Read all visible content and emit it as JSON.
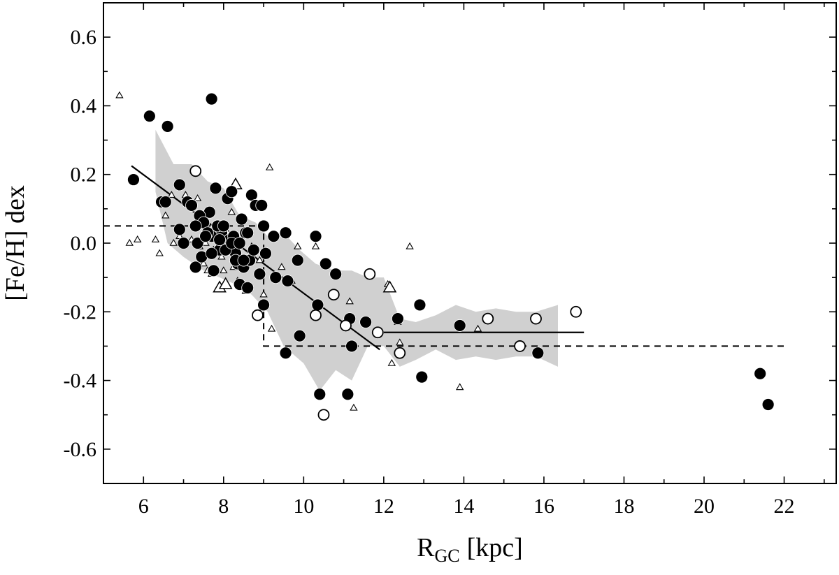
{
  "chart_data": {
    "type": "scatter",
    "title": "",
    "xlabel": {
      "main": "R",
      "sub": "GC",
      "unit": "[kpc]"
    },
    "ylabel": "[Fe/H] dex",
    "xlim": [
      5,
      23.3
    ],
    "ylim": [
      -0.7,
      0.7
    ],
    "xticks": [
      6,
      8,
      10,
      12,
      14,
      16,
      18,
      20,
      22
    ],
    "yticks": [
      0.6,
      0.4,
      0.2,
      0.0,
      -0.2,
      -0.4,
      -0.6
    ],
    "ytick_labels": [
      "0.6",
      "0.4",
      "0.2",
      "0.0",
      "-0.2",
      "-0.4",
      "-0.6"
    ],
    "grid": false,
    "colors": {
      "band": "#d0d0d0",
      "marker": "#000000",
      "background": "#ffffff"
    },
    "filled_circles": {
      "marker": "filled-circle",
      "x": [
        5.75,
        6.15,
        6.6,
        6.45,
        6.55,
        7.7,
        6.9,
        7.1,
        7.2,
        7.3,
        7.45,
        7.8,
        7.95,
        8.05,
        7.9,
        8.15,
        8.3,
        8.45,
        8.55,
        8.7,
        8.8,
        8.95,
        9.0,
        9.05,
        7.65,
        7.7,
        7.4,
        7.5,
        7.6,
        7.75,
        7.85,
        8.0,
        8.1,
        8.2,
        8.25,
        8.35,
        8.4,
        8.5,
        8.6,
        8.65,
        8.75,
        8.9,
        6.9,
        7.0,
        7.3,
        7.35,
        7.55,
        7.7,
        7.9,
        8.05,
        8.2,
        8.3,
        8.4,
        8.5,
        8.6,
        9.0,
        9.25,
        9.3,
        9.55,
        9.6,
        9.85,
        9.9,
        10.3,
        10.35,
        10.55,
        10.8,
        11.15,
        11.2,
        11.55,
        12.35,
        12.9,
        13.9,
        9.55,
        10.4,
        11.1,
        12.95,
        15.85,
        21.4,
        21.6
      ],
      "y": [
        0.185,
        0.37,
        0.34,
        0.12,
        0.12,
        0.42,
        0.17,
        0.12,
        0.11,
        -0.07,
        -0.04,
        0.16,
        0.03,
        0.0,
        -0.02,
        0.01,
        -0.03,
        0.07,
        0.03,
        0.14,
        0.11,
        0.11,
        0.05,
        -0.03,
        0.09,
        0.02,
        0.08,
        0.06,
        0.03,
        -0.08,
        0.05,
        0.05,
        0.13,
        0.15,
        0.02,
        -0.06,
        -0.12,
        -0.07,
        -0.13,
        -0.05,
        -0.02,
        -0.09,
        0.04,
        0.0,
        0.05,
        0.0,
        0.02,
        -0.03,
        0.01,
        -0.02,
        0.0,
        -0.05,
        0.0,
        -0.05,
        0.03,
        -0.18,
        0.02,
        -0.1,
        0.03,
        -0.11,
        -0.05,
        -0.27,
        0.02,
        -0.18,
        -0.06,
        -0.09,
        -0.22,
        -0.3,
        -0.23,
        -0.22,
        -0.18,
        -0.24,
        -0.32,
        -0.44,
        -0.44,
        -0.39,
        -0.32,
        -0.38,
        -0.47
      ]
    },
    "open_circles": {
      "marker": "open-circle",
      "x": [
        7.3,
        8.85,
        10.3,
        10.5,
        10.75,
        11.05,
        11.65,
        11.85,
        12.4,
        14.6,
        15.4,
        15.8,
        16.8
      ],
      "y": [
        0.21,
        -0.21,
        -0.21,
        -0.5,
        -0.15,
        -0.24,
        -0.09,
        -0.26,
        -0.32,
        -0.22,
        -0.3,
        -0.22,
        -0.2
      ]
    },
    "small_triangles": {
      "marker": "open-triangle",
      "x": [
        5.4,
        5.65,
        5.85,
        6.3,
        6.4,
        6.55,
        6.7,
        6.75,
        6.9,
        7.05,
        7.2,
        7.35,
        7.4,
        7.5,
        7.55,
        7.6,
        7.7,
        7.75,
        7.95,
        8.0,
        8.1,
        8.2,
        8.25,
        8.35,
        8.45,
        8.55,
        8.7,
        8.9,
        9.0,
        9.2,
        9.3,
        9.45,
        9.7,
        9.85,
        10.3,
        11.15,
        11.25,
        12.1,
        12.2,
        12.35,
        12.4,
        12.65,
        13.9,
        14.35,
        9.15
      ],
      "y": [
        0.43,
        0.0,
        0.01,
        0.01,
        -0.03,
        0.08,
        0.14,
        0.0,
        0.02,
        0.14,
        0.01,
        0.13,
        -0.01,
        -0.06,
        0.0,
        -0.08,
        -0.09,
        -0.02,
        -0.04,
        -0.08,
        0.03,
        0.09,
        -0.07,
        -0.11,
        -0.12,
        -0.14,
        -0.01,
        -0.05,
        -0.15,
        -0.25,
        -0.1,
        -0.07,
        -0.11,
        -0.01,
        -0.01,
        -0.17,
        -0.48,
        -0.12,
        -0.35,
        -0.23,
        -0.29,
        -0.01,
        -0.42,
        -0.25,
        0.22
      ]
    },
    "large_triangles": {
      "marker": "open-triangle-large",
      "x": [
        7.9,
        8.05,
        8.3,
        12.15
      ],
      "y": [
        -0.13,
        -0.12,
        0.17,
        -0.13
      ]
    },
    "trend_solid": {
      "x": [
        5.7,
        11.9,
        12.0,
        17.0
      ],
      "y": [
        0.225,
        -0.31,
        -0.26,
        -0.26
      ],
      "segments": [
        [
          0,
          1
        ],
        [
          2,
          3
        ]
      ]
    },
    "trend_dashed": {
      "x": [
        5.0,
        9.0,
        9.0,
        22.0
      ],
      "y": [
        0.05,
        0.05,
        -0.3,
        -0.3
      ]
    },
    "dispersion_band": {
      "upper": [
        [
          6.3,
          0.33
        ],
        [
          6.75,
          0.23
        ],
        [
          7.2,
          0.23
        ],
        [
          7.6,
          0.18
        ],
        [
          8.0,
          0.16
        ],
        [
          8.4,
          0.08
        ],
        [
          8.8,
          0.06
        ],
        [
          9.1,
          0.02
        ],
        [
          9.5,
          0.03
        ],
        [
          9.9,
          -0.02
        ],
        [
          10.3,
          -0.06
        ],
        [
          10.8,
          -0.08
        ],
        [
          11.2,
          -0.08
        ],
        [
          11.6,
          -0.1
        ],
        [
          12.0,
          -0.1
        ],
        [
          12.4,
          -0.22
        ],
        [
          12.8,
          -0.23
        ],
        [
          13.3,
          -0.21
        ],
        [
          13.8,
          -0.18
        ],
        [
          14.3,
          -0.2
        ],
        [
          14.8,
          -0.19
        ],
        [
          15.3,
          -0.2
        ],
        [
          15.8,
          -0.2
        ],
        [
          16.35,
          -0.18
        ]
      ],
      "lower": [
        [
          16.35,
          -0.36
        ],
        [
          15.8,
          -0.33
        ],
        [
          15.3,
          -0.33
        ],
        [
          14.8,
          -0.34
        ],
        [
          14.3,
          -0.33
        ],
        [
          13.8,
          -0.34
        ],
        [
          13.3,
          -0.31
        ],
        [
          12.8,
          -0.34
        ],
        [
          12.4,
          -0.36
        ],
        [
          12.0,
          -0.3
        ],
        [
          11.6,
          -0.3
        ],
        [
          11.2,
          -0.4
        ],
        [
          10.8,
          -0.37
        ],
        [
          10.4,
          -0.43
        ],
        [
          10.0,
          -0.35
        ],
        [
          9.5,
          -0.3
        ],
        [
          9.1,
          -0.2
        ],
        [
          8.7,
          -0.15
        ],
        [
          8.3,
          -0.12
        ],
        [
          7.9,
          -0.1
        ],
        [
          7.5,
          -0.08
        ],
        [
          7.0,
          -0.04
        ],
        [
          6.6,
          0.0
        ],
        [
          6.3,
          0.15
        ]
      ]
    }
  }
}
